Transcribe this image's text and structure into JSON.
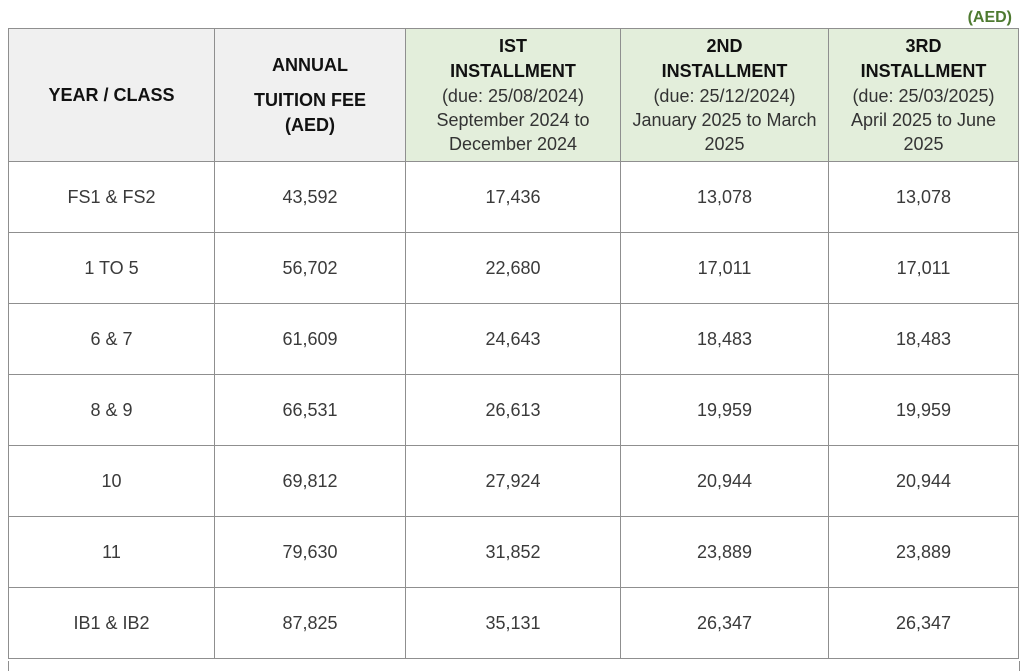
{
  "currency_note": "(AED)",
  "headers": {
    "year_class": "YEAR / CLASS",
    "annual_line1": "ANNUAL",
    "annual_line2": "TUITION FEE",
    "annual_line3": "(AED)",
    "inst1_line1": "IST",
    "inst1_line2": "INSTALLMENT",
    "inst1_due": "(due: 25/08/2024)",
    "inst1_period": "September 2024 to December 2024",
    "inst2_line1": "2ND",
    "inst2_line2": "INSTALLMENT",
    "inst2_due": "(due: 25/12/2024)",
    "inst2_period": "January 2025 to March 2025",
    "inst3_line1": "3RD",
    "inst3_line2": "INSTALLMENT",
    "inst3_due": "(due: 25/03/2025)",
    "inst3_period": "April 2025 to June 2025"
  },
  "rows": [
    {
      "year_class": "FS1 & FS2",
      "annual": "43,592",
      "inst1": "17,436",
      "inst2": "13,078",
      "inst3": "13,078"
    },
    {
      "year_class": "1 TO 5",
      "annual": "56,702",
      "inst1": "22,680",
      "inst2": "17,011",
      "inst3": "17,011"
    },
    {
      "year_class": "6 & 7",
      "annual": "61,609",
      "inst1": "24,643",
      "inst2": "18,483",
      "inst3": "18,483"
    },
    {
      "year_class": "8 & 9",
      "annual": "66,531",
      "inst1": "26,613",
      "inst2": "19,959",
      "inst3": "19,959"
    },
    {
      "year_class": "10",
      "annual": "69,812",
      "inst1": "27,924",
      "inst2": "20,944",
      "inst3": "20,944"
    },
    {
      "year_class": "11",
      "annual": "79,630",
      "inst1": "31,852",
      "inst2": "23,889",
      "inst3": "23,889"
    },
    {
      "year_class": "IB1 & IB2",
      "annual": "87,825",
      "inst1": "35,131",
      "inst2": "26,347",
      "inst3": "26,347"
    }
  ],
  "colors": {
    "header_gray": "#f0f0f0",
    "header_green": "#e3eedb",
    "note_green": "#4e7a30",
    "border": "#8f8f8f"
  }
}
